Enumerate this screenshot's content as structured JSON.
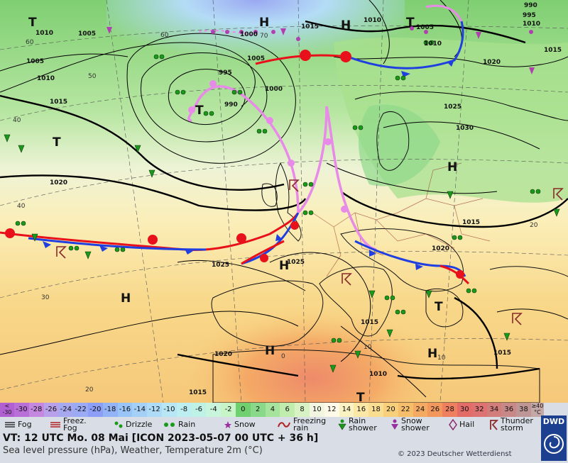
{
  "map": {
    "highs": [
      {
        "label": "H"
      },
      {
        "label": "H"
      },
      {
        "label": "H"
      },
      {
        "label": "H"
      },
      {
        "label": "H"
      },
      {
        "label": "H"
      },
      {
        "label": "H"
      }
    ],
    "lows": [
      {
        "label": "T"
      },
      {
        "label": "T"
      },
      {
        "label": "T"
      },
      {
        "label": "T"
      },
      {
        "label": "T"
      },
      {
        "label": "T"
      }
    ],
    "isobar_labels": [
      {
        "text": "1005"
      },
      {
        "text": "1010"
      },
      {
        "text": "1015"
      },
      {
        "text": "1020"
      },
      {
        "text": "1025"
      },
      {
        "text": "1030"
      },
      {
        "text": "995"
      },
      {
        "text": "990"
      },
      {
        "text": "1000"
      },
      {
        "text": "1025"
      },
      {
        "text": "1020"
      },
      {
        "text": "1015"
      },
      {
        "text": "1010"
      },
      {
        "text": "1020"
      },
      {
        "text": "1015"
      },
      {
        "text": "1010"
      },
      {
        "text": "1000"
      },
      {
        "text": "1005"
      },
      {
        "text": "1010"
      },
      {
        "text": "1015"
      },
      {
        "text": "1005"
      },
      {
        "text": "1010"
      },
      {
        "text": "1015"
      },
      {
        "text": "990"
      },
      {
        "text": "995"
      },
      {
        "text": "1005"
      },
      {
        "text": "1010"
      },
      {
        "text": "1015"
      },
      {
        "text": "1025"
      },
      {
        "text": "1020"
      },
      {
        "text": "1015"
      }
    ],
    "grid_labels": [
      {
        "text": "60"
      },
      {
        "text": "50"
      },
      {
        "text": "40"
      },
      {
        "text": "40"
      },
      {
        "text": "30"
      },
      {
        "text": "20"
      },
      {
        "text": "60"
      },
      {
        "text": "70"
      },
      {
        "text": "0"
      },
      {
        "text": "10"
      },
      {
        "text": "10"
      },
      {
        "text": "20"
      }
    ],
    "colors": {
      "ocean_warm": "#f4e7a0",
      "land_cool": "#9fe08a",
      "cold_front": "#1f3fe0",
      "warm_front": "#e8101a",
      "occluded_front": "#e88ae8",
      "isobar": "#000000"
    }
  },
  "temperature_scale": {
    "unit_top": "<",
    "unit_bottom": "-30",
    "cells": [
      {
        "value": "-30",
        "color": "#b86fd8"
      },
      {
        "value": "-28",
        "color": "#c588e0"
      },
      {
        "value": "-26",
        "color": "#b8a0ea"
      },
      {
        "value": "-24",
        "color": "#a6a8f0"
      },
      {
        "value": "-22",
        "color": "#9aaaf4"
      },
      {
        "value": "-20",
        "color": "#8c9ef5"
      },
      {
        "value": "-18",
        "color": "#92b4f6"
      },
      {
        "value": "-16",
        "color": "#98c4f7"
      },
      {
        "value": "-14",
        "color": "#a4d0f8"
      },
      {
        "value": "-12",
        "color": "#aedcf8"
      },
      {
        "value": "-10",
        "color": "#b8e6f5"
      },
      {
        "value": "-8",
        "color": "#bdeef0"
      },
      {
        "value": "-6",
        "color": "#bff2e6"
      },
      {
        "value": "-4",
        "color": "#c8f5dc"
      },
      {
        "value": "-2",
        "color": "#c8f5c8"
      },
      {
        "value": "0",
        "color": "#70d070"
      },
      {
        "value": "2",
        "color": "#8ad88a"
      },
      {
        "value": "4",
        "color": "#a6e39c"
      },
      {
        "value": "6",
        "color": "#c0ecae"
      },
      {
        "value": "8",
        "color": "#d8f2c4"
      },
      {
        "value": "10",
        "color": "#f2f6e0"
      },
      {
        "value": "12",
        "color": "#fffbe8"
      },
      {
        "value": "14",
        "color": "#fbf2c2"
      },
      {
        "value": "16",
        "color": "#fbe7a6"
      },
      {
        "value": "18",
        "color": "#f9dd90"
      },
      {
        "value": "20",
        "color": "#f8cf7a"
      },
      {
        "value": "22",
        "color": "#f6bd6a"
      },
      {
        "value": "24",
        "color": "#f4aa62"
      },
      {
        "value": "26",
        "color": "#f2985c"
      },
      {
        "value": "28",
        "color": "#ee8060"
      },
      {
        "value": "30",
        "color": "#e46c68"
      },
      {
        "value": "32",
        "color": "#dc7272"
      },
      {
        "value": "34",
        "color": "#d27c7c"
      },
      {
        "value": "36",
        "color": "#c88888"
      },
      {
        "value": "38",
        "color": "#be9696"
      },
      {
        "value": "≥40",
        "color": "#c4a8a8"
      }
    ],
    "unit_label": "°C"
  },
  "weather_legend": {
    "fog": "Fog",
    "freezing_fog_1": "Freez.",
    "freezing_fog_2": "Fog",
    "drizzle": "Drizzle",
    "rain": "Rain",
    "snow": "Snow",
    "freezing_rain_1": "Freezing",
    "freezing_rain_2": "rain",
    "rain_shower_1": "Rain",
    "rain_shower_2": "shower",
    "snow_shower_1": "Snow",
    "snow_shower_2": "shower",
    "hail": "Hail",
    "thunderstorm_1": "Thunder",
    "thunderstorm_2": "storm"
  },
  "footer": {
    "valid_time": "VT: 12 UTC Mo.  08 Mai [ICON 2023-05-07  00 UTC + 36 h]",
    "description": "Sea level pressure (hPa), Weather, Temperature 2m (°C)",
    "copyright": "© 2023 Deutscher Wetterdienst",
    "logo_text": "DWD"
  }
}
